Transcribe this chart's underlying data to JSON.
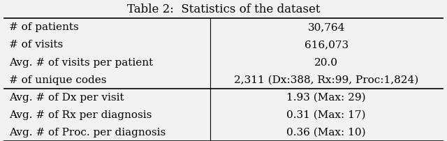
{
  "title": "Table 2:  Statistics of the dataset",
  "col_split": 0.47,
  "rows_section1": [
    [
      "# of patients",
      "30,764"
    ],
    [
      "# of visits",
      "616,073"
    ],
    [
      "Avg. # of visits per patient",
      "20.0"
    ],
    [
      "# of unique codes",
      "2,311 (Dx:388, Rx:99, Proc:1,824)"
    ]
  ],
  "rows_section2": [
    [
      "Avg. # of Dx per visit",
      "1.93 (Max: 29)"
    ],
    [
      "Avg. # of Rx per diagnosis",
      "0.31 (Max: 17)"
    ],
    [
      "Avg. # of Proc. per diagnosis",
      "0.36 (Max: 10)"
    ]
  ],
  "bg_color": "#f2f2f2",
  "font_size": 11.0,
  "title_font_size": 12.0
}
